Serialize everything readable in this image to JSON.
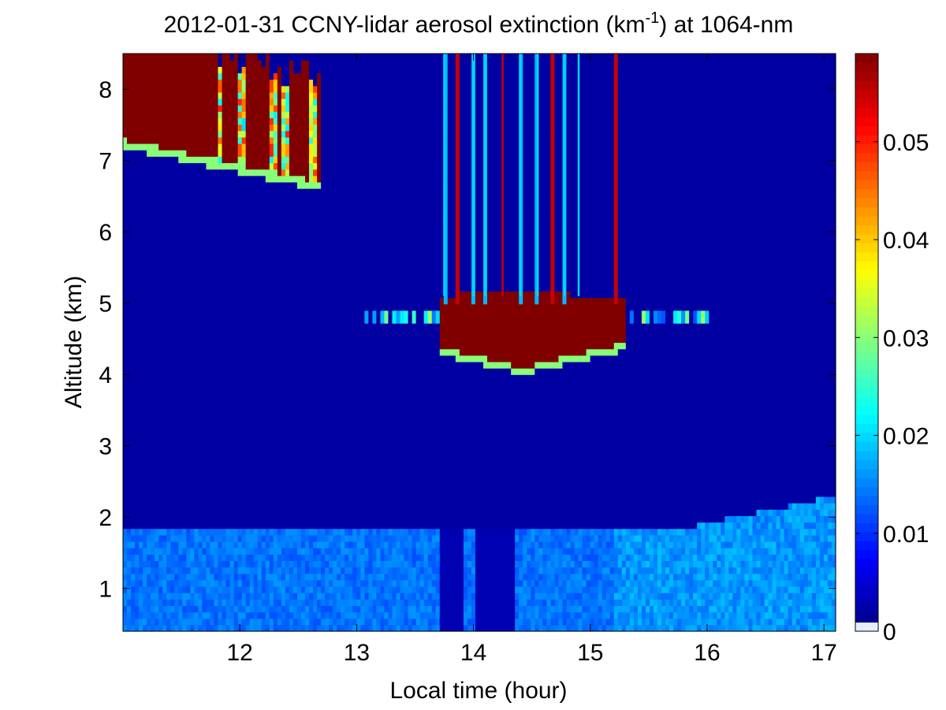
{
  "chart_data": {
    "type": "heatmap",
    "title": {
      "prefix": "2012-01-31 CCNY-lidar aerosol extinction (km",
      "superscript": "-1",
      "suffix": ") at 1064-nm"
    },
    "xlabel": "Local time (hour)",
    "ylabel": "Altitude (km)",
    "xlim": [
      11.0,
      17.1
    ],
    "ylim": [
      0.4,
      8.5
    ],
    "xticks": [
      12,
      13,
      14,
      15,
      16,
      17
    ],
    "yticks": [
      1,
      2,
      3,
      4,
      5,
      6,
      7,
      8
    ],
    "colorbar": {
      "colormap": "jet",
      "range": [
        0,
        0.059
      ],
      "ticks": [
        0,
        0.01,
        0.02,
        0.03,
        0.04,
        0.05
      ],
      "tick_labels": [
        "0",
        "0.01",
        "0.02",
        "0.03",
        "0.04",
        "0.05"
      ]
    },
    "features": {
      "boundary_layer": {
        "top_km": 1.85,
        "extinction": 0.014,
        "rises_to_km_at_end": 2.3
      },
      "free_troposphere": {
        "extinction": 0.002
      },
      "high_cloud": {
        "t_start": 11.0,
        "t_end": 12.7,
        "base_km_start": 7.3,
        "base_km_end": 6.7,
        "top_km": 8.5,
        "extinction": 0.06
      },
      "mid_cloud": {
        "t_start": 13.7,
        "t_end": 15.3,
        "base_km": 4.1,
        "top_km": 5.2,
        "extinction": 0.06,
        "thin_layer_t": [
          13.0,
          16.0
        ],
        "thin_layer_km": 4.8
      },
      "precip_streaks": {
        "times": [
          13.75,
          13.87,
          14.0,
          14.1,
          14.25,
          14.4,
          14.55,
          14.67,
          14.78,
          14.9,
          15.22
        ]
      }
    }
  }
}
